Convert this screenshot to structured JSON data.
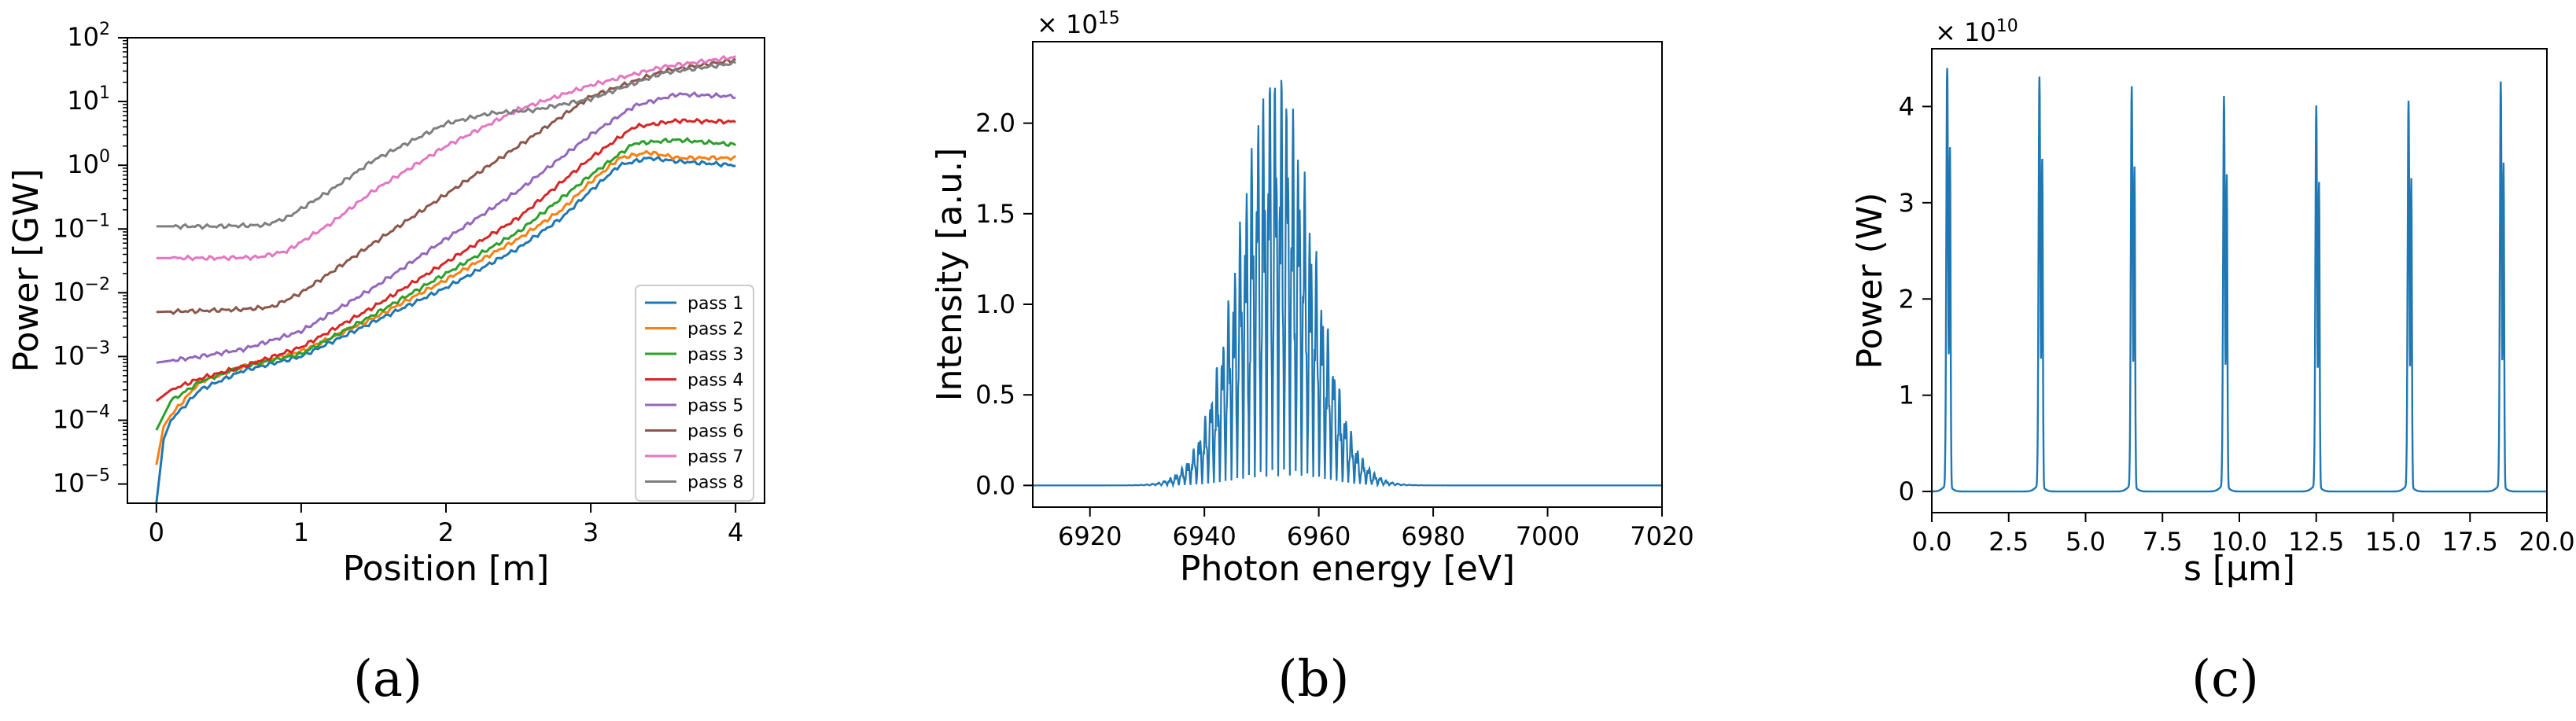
{
  "panels": [
    {
      "panel_label": "(a)",
      "chart_data": {
        "type": "line",
        "title": "",
        "xlabel": "Position [m]",
        "ylabel": "Power [GW]",
        "yscale": "log",
        "xlim": [
          -0.2,
          4.2
        ],
        "ylim": [
          5e-06,
          100
        ],
        "x_ticks": [
          0,
          1,
          2,
          3,
          4
        ],
        "x_tick_labels": [
          "0",
          "1",
          "2",
          "3",
          "4"
        ],
        "y_ticks": [
          1e-05,
          0.0001,
          0.001,
          0.01,
          0.1,
          1,
          10,
          100
        ],
        "y_tick_labels": [
          {
            "base": "10",
            "exp": "−5"
          },
          {
            "base": "10",
            "exp": "−4"
          },
          {
            "base": "10",
            "exp": "−3"
          },
          {
            "base": "10",
            "exp": "−2"
          },
          {
            "base": "10",
            "exp": "−1"
          },
          {
            "base": "10",
            "exp": "0"
          },
          {
            "base": "10",
            "exp": "1"
          },
          {
            "base": "10",
            "exp": "2"
          }
        ],
        "grid": false,
        "legend_position": "lower-right",
        "series": [
          {
            "name": "pass 1",
            "color": "#1f77b4",
            "x": [
              0,
              0.05,
              0.1,
              0.3,
              0.6,
              1.0,
              1.5,
              2.0,
              2.5,
              2.8,
              3.0,
              3.2,
              3.4,
              3.6,
              4.0
            ],
            "y": [
              5e-06,
              5e-05,
              0.0001,
              0.0003,
              0.0006,
              0.001,
              0.0035,
              0.012,
              0.05,
              0.15,
              0.4,
              1.0,
              1.3,
              1.15,
              1.0
            ]
          },
          {
            "name": "pass 2",
            "color": "#ff7f0e",
            "x": [
              0,
              0.05,
              0.1,
              0.3,
              0.6,
              1.0,
              1.5,
              2.0,
              2.5,
              2.8,
              3.0,
              3.2,
              3.4,
              3.6,
              4.0
            ],
            "y": [
              2e-05,
              8e-05,
              0.00012,
              0.0004,
              0.0007,
              0.0012,
              0.004,
              0.016,
              0.07,
              0.2,
              0.55,
              1.3,
              1.6,
              1.3,
              1.3
            ]
          },
          {
            "name": "pass 3",
            "color": "#2ca02c",
            "x": [
              0,
              0.1,
              0.3,
              0.6,
              1.0,
              1.5,
              2.0,
              2.5,
              3.0,
              3.3,
              3.6,
              4.0
            ],
            "y": [
              7e-05,
              0.0002,
              0.0004,
              0.0007,
              0.0011,
              0.0045,
              0.02,
              0.09,
              0.7,
              2.2,
              2.5,
              2.1
            ]
          },
          {
            "name": "pass 4",
            "color": "#d62728",
            "x": [
              0,
              0.1,
              0.3,
              0.6,
              1.0,
              1.5,
              2.0,
              2.5,
              3.0,
              3.3,
              3.6,
              4.0
            ],
            "y": [
              0.0002,
              0.0003,
              0.00045,
              0.0007,
              0.0014,
              0.006,
              0.03,
              0.15,
              1.3,
              4.0,
              5.0,
              4.8
            ]
          },
          {
            "name": "pass 5",
            "color": "#9467bd",
            "x": [
              0,
              0.3,
              0.6,
              1.0,
              1.5,
              2.0,
              2.5,
              3.0,
              3.3,
              3.6,
              4.0
            ],
            "y": [
              0.0008,
              0.001,
              0.0013,
              0.0025,
              0.012,
              0.07,
              0.4,
              3.0,
              8.5,
              13.0,
              12.0
            ]
          },
          {
            "name": "pass 6",
            "color": "#8c564b",
            "x": [
              0,
              0.3,
              0.6,
              0.8,
              1.0,
              1.5,
              2.0,
              2.5,
              3.0,
              3.5,
              4.0
            ],
            "y": [
              0.005,
              0.0052,
              0.0055,
              0.006,
              0.01,
              0.06,
              0.35,
              2.0,
              12.0,
              30.0,
              45.0
            ]
          },
          {
            "name": "pass 7",
            "color": "#e377c2",
            "x": [
              0,
              0.4,
              0.7,
              0.9,
              1.2,
              1.5,
              2.0,
              2.5,
              3.0,
              3.5,
              4.0
            ],
            "y": [
              0.035,
              0.035,
              0.036,
              0.045,
              0.12,
              0.4,
              2.0,
              7.5,
              18.0,
              35.0,
              50.0
            ]
          },
          {
            "name": "pass 8",
            "color": "#7f7f7f",
            "x": [
              0,
              0.4,
              0.75,
              0.9,
              1.2,
              1.5,
              2.0,
              2.3,
              2.6,
              3.0,
              3.5,
              4.0
            ],
            "y": [
              0.11,
              0.11,
              0.115,
              0.15,
              0.4,
              1.2,
              4.5,
              6.5,
              7.3,
              11.0,
              28.0,
              40.0
            ]
          }
        ]
      }
    },
    {
      "panel_label": "(b)",
      "chart_data": {
        "type": "line",
        "title": "",
        "xlabel": "Photon energy [eV]",
        "ylabel": "Intensity [a.u.]",
        "y_offset_label": {
          "prefix": "× 10",
          "exp": "15"
        },
        "xlim": [
          6910,
          7020
        ],
        "ylim": [
          -0.12,
          2.45
        ],
        "x_ticks": [
          6920,
          6940,
          6960,
          6980,
          7000,
          7020
        ],
        "x_tick_labels": [
          "6920",
          "6940",
          "6960",
          "6980",
          "7000",
          "7020"
        ],
        "y_ticks": [
          0,
          0.5,
          1.0,
          1.5,
          2.0
        ],
        "y_tick_labels": [
          "0.0",
          "0.5",
          "1.0",
          "1.5",
          "2.0"
        ],
        "grid": false,
        "series": [
          {
            "name": "",
            "color": "#1f77b4",
            "center": 6952.5,
            "peak": 2.35,
            "width": 6.5,
            "x": [
              6936,
              6940,
              6944,
              6948,
              6951,
              6952.5,
              6954,
              6957,
              6961,
              6965,
              6969
            ],
            "y": [
              0.05,
              0.25,
              0.8,
              1.6,
              2.1,
              2.35,
              2.2,
              1.6,
              0.8,
              0.3,
              0.08
            ]
          }
        ]
      }
    },
    {
      "panel_label": "(c)",
      "chart_data": {
        "type": "line",
        "title": "",
        "xlabel": "s [μm]",
        "ylabel": "Power (W)",
        "y_offset_label": {
          "prefix": "× 10",
          "exp": "10"
        },
        "xlim": [
          0,
          20
        ],
        "ylim": [
          -0.22,
          4.6
        ],
        "x_ticks": [
          0,
          2.5,
          5,
          7.5,
          10,
          12.5,
          15,
          17.5,
          20
        ],
        "x_tick_labels": [
          "0.0",
          "2.5",
          "5.0",
          "7.5",
          "10.0",
          "12.5",
          "15.0",
          "17.5",
          "20.0"
        ],
        "y_ticks": [
          0,
          1,
          2,
          3,
          4
        ],
        "y_tick_labels": [
          "0",
          "1",
          "2",
          "3",
          "4"
        ],
        "grid": false,
        "series": [
          {
            "name": "",
            "color": "#1f77b4",
            "peaks_x": [
              0.5,
              3.5,
              6.5,
              9.5,
              12.5,
              15.5,
              18.5
            ],
            "peaks_y": [
              4.4,
              4.25,
              4.15,
              4.05,
              3.95,
              4.0,
              4.2
            ]
          }
        ]
      }
    }
  ]
}
